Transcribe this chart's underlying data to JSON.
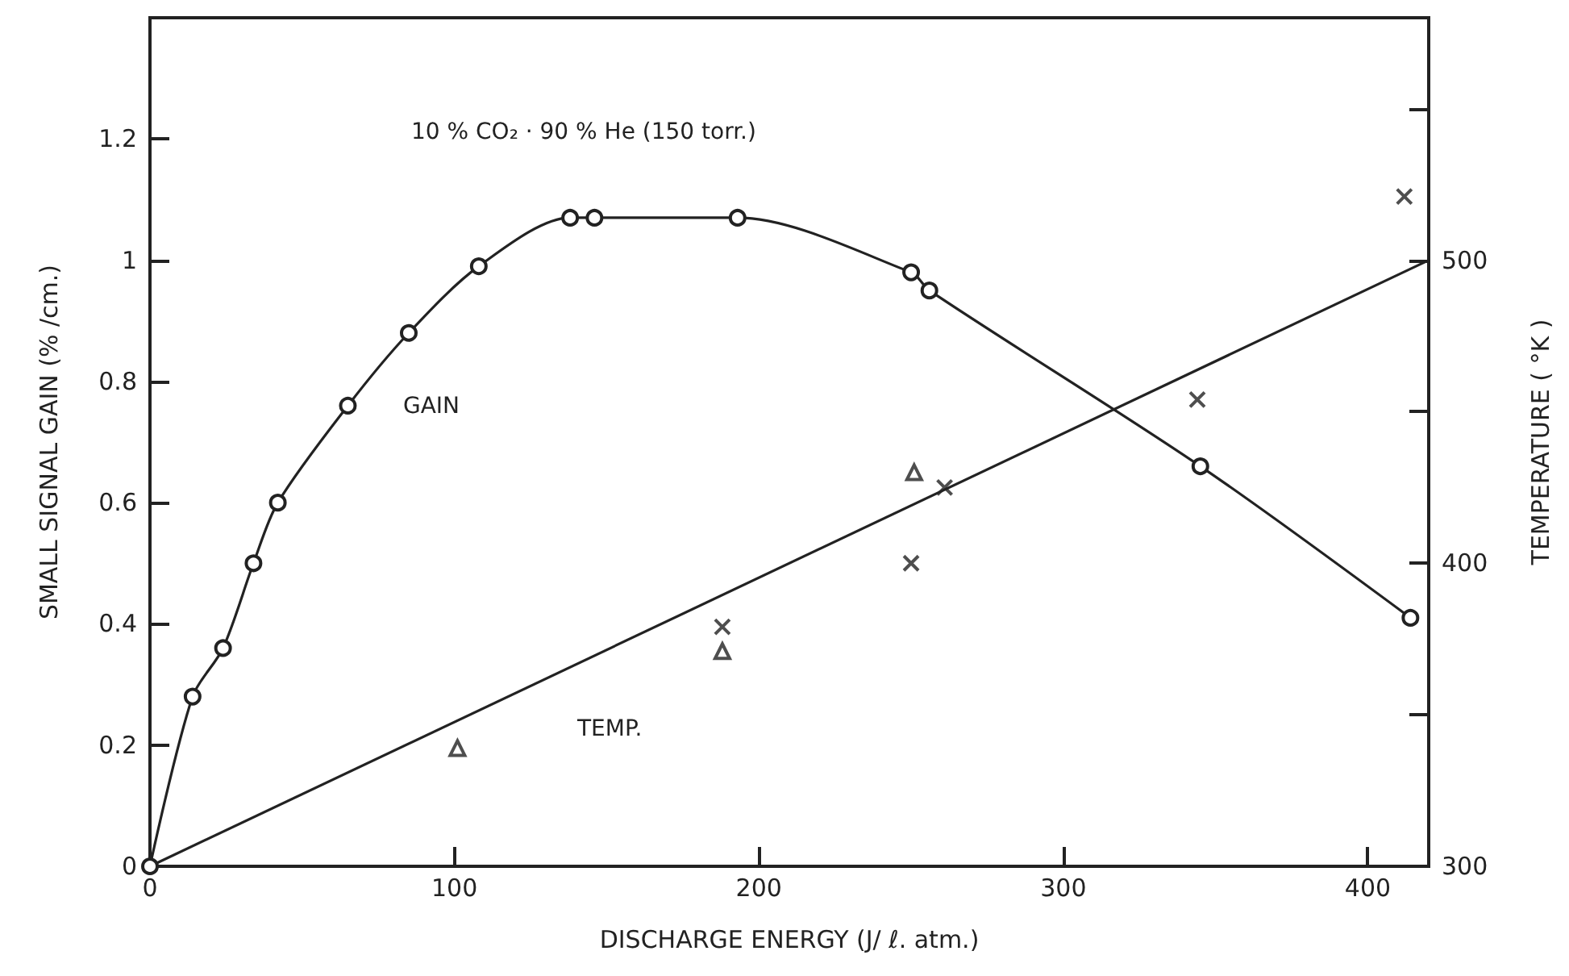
{
  "chart_data": {
    "type": "line",
    "title": "10 % CO₂ · 90 % He (150 torr.)",
    "xlabel": "DISCHARGE ENERGY (J/ ℓ. atm.)",
    "ylabel": "SMALL SIGNAL GAIN (% /cm.)",
    "y2label": "TEMPERATURE ( °K )",
    "xlim": [
      0,
      420
    ],
    "xticks": [
      0,
      100,
      200,
      300,
      400
    ],
    "ylim": [
      0,
      1.4
    ],
    "yticks": [
      0,
      0.2,
      0.4,
      0.6,
      0.8,
      1.0,
      1.2
    ],
    "y2lim": [
      300,
      580
    ],
    "y2ticks": [
      300,
      {
        "value": 350,
        "label": null
      },
      400,
      {
        "value": 450,
        "label": null
      },
      500,
      {
        "value": 550,
        "label": null
      }
    ],
    "grid": false,
    "annotations": [
      "GAIN",
      "TEMP."
    ],
    "series": [
      {
        "color": "#222222",
        "marker": "circle",
        "x": [
          0,
          14,
          24,
          34,
          42,
          65,
          85,
          108,
          138,
          146,
          193,
          250,
          256,
          345,
          414
        ],
        "values": [
          0,
          0.28,
          0.36,
          0.5,
          0.6,
          0.76,
          0.88,
          0.99,
          1.07,
          1.07,
          1.07,
          0.98,
          0.95,
          0.66,
          0.41
        ]
      },
      {
        "type": "line",
        "color": "#222222",
        "axis": "y2",
        "x": [
          0,
          420
        ],
        "values": [
          300,
          500
        ]
      },
      {
        "type": "scatter",
        "color": "#222222",
        "marker": "triangle",
        "axis": "y2",
        "x": [
          101,
          188,
          251
        ],
        "values": [
          339,
          371,
          430
        ]
      },
      {
        "type": "scatter",
        "color": "#222222",
        "marker": "cross",
        "axis": "y2",
        "x": [
          188,
          250,
          261,
          344,
          412
        ],
        "values": [
          379,
          400,
          425,
          454,
          521
        ]
      }
    ]
  }
}
